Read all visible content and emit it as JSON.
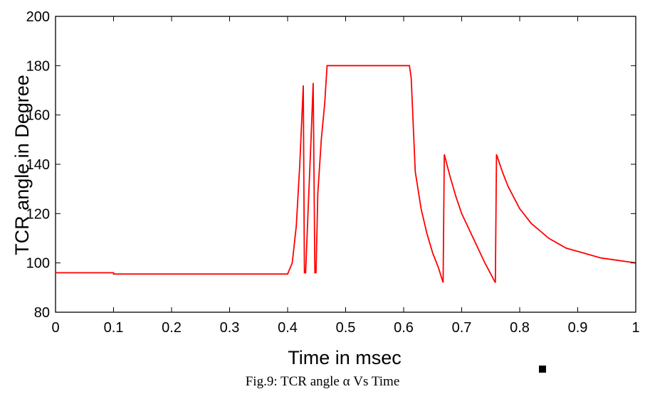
{
  "chart_data": {
    "type": "line",
    "title": "",
    "xlabel": "Time in msec",
    "ylabel": "TCR angle in Degree",
    "xlim": [
      0,
      1
    ],
    "ylim": [
      80,
      200
    ],
    "xticks": [
      "0",
      "0.1",
      "0.2",
      "0.3",
      "0.4",
      "0.5",
      "0.6",
      "0.7",
      "0.8",
      "0.9",
      "1"
    ],
    "yticks": [
      "80",
      "100",
      "120",
      "140",
      "160",
      "180",
      "200"
    ],
    "grid": false,
    "line_color": "#ff0000",
    "series": [
      {
        "x": [
          0,
          0.1,
          0.1,
          0.4,
          0.408,
          0.415,
          0.421,
          0.427,
          0.429,
          0.431,
          0.436,
          0.44,
          0.444,
          0.447,
          0.449,
          0.452,
          0.458,
          0.464,
          0.468,
          0.47,
          0.61,
          0.613,
          0.62,
          0.63,
          0.64,
          0.65,
          0.66,
          0.668,
          0.67,
          0.68,
          0.69,
          0.7,
          0.72,
          0.74,
          0.758,
          0.76,
          0.77,
          0.78,
          0.8,
          0.82,
          0.85,
          0.88,
          0.91,
          0.94,
          0.97,
          1.0
        ],
        "y": [
          96,
          96,
          95.5,
          95.5,
          100,
          115,
          140,
          172,
          96,
          96,
          125,
          148,
          173,
          96,
          96,
          128,
          150,
          165,
          180,
          180,
          180,
          175,
          137,
          122,
          112,
          104,
          98,
          92,
          144,
          135,
          127,
          120,
          110,
          100,
          92,
          144,
          137,
          131,
          122,
          116,
          110,
          106,
          104,
          102,
          101,
          100
        ]
      }
    ]
  },
  "caption": "Fig.9: TCR angle α Vs Time"
}
